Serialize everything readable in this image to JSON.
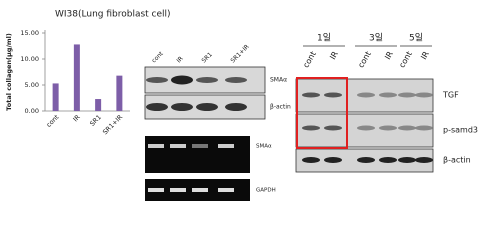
{
  "chart_data": {
    "type": "bar",
    "title": "WI38(Lung fibroblast cell)",
    "y_label": "Total collagen(μg/ml)",
    "categories": [
      "cont",
      "IR",
      "SR1",
      "SR1+IR"
    ],
    "values": [
      5.3,
      12.8,
      2.3,
      6.8
    ],
    "color": "#7d5ea8",
    "ylim": [
      0,
      15
    ],
    "yticks": [
      {
        "value": 0,
        "label": "0.00"
      },
      {
        "value": 5,
        "label": "5.00"
      },
      {
        "value": 10,
        "label": "10.00"
      },
      {
        "value": 15,
        "label": "15.00"
      }
    ]
  },
  "western_blot": {
    "lanes": [
      "cont",
      "IR",
      "SR1",
      "SR1+IR"
    ],
    "rows": [
      "SMAα",
      "β-actin"
    ]
  },
  "rt_pcr": {
    "rows": [
      "SMAα",
      "GAPDH"
    ]
  },
  "time_course": {
    "days": [
      "1일",
      "3일",
      "5일"
    ],
    "lanes": [
      "cont",
      "IR",
      "cont",
      "IR",
      "cont",
      "IR"
    ],
    "rows": [
      "TGF",
      "p-samd3",
      "β-actin"
    ]
  }
}
